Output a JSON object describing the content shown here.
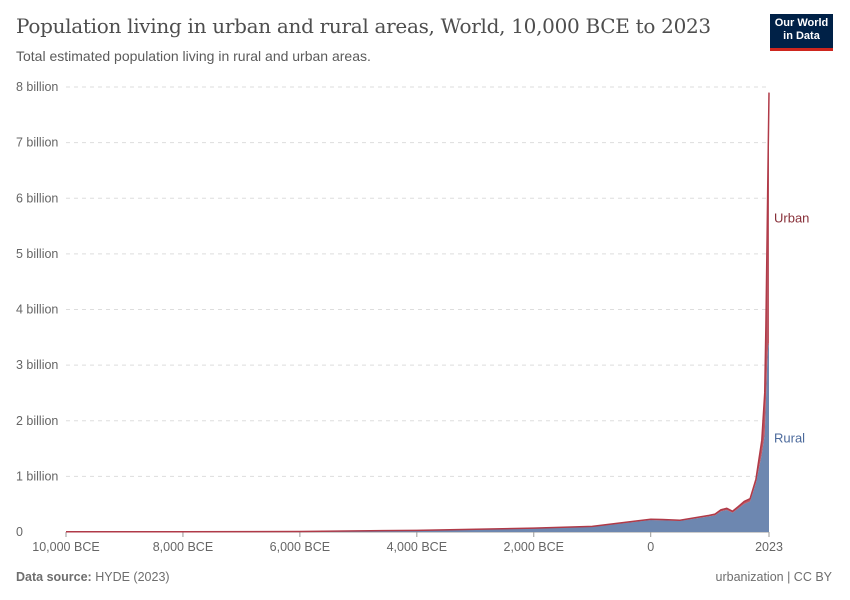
{
  "header": {
    "title": "Population living in urban and rural areas, World, 10,000 BCE to 2023",
    "subtitle": "Total estimated population living in rural and urban areas.",
    "logo": "Our World in Data"
  },
  "footer": {
    "source_label": "Data source:",
    "source": "HYDE (2023)",
    "license": "urbanization | CC BY"
  },
  "chart_data": {
    "type": "area",
    "stacked": true,
    "title": "Population living in urban and rural areas, World, 10,000 BCE to 2023",
    "xlim": [
      -10000,
      2023
    ],
    "ylim": [
      0,
      8000000000
    ],
    "grid": true,
    "legend": "right (inline labels)",
    "x_ticks": [
      {
        "value": -10000,
        "label": "10,000 BCE"
      },
      {
        "value": -8000,
        "label": "8,000 BCE"
      },
      {
        "value": -6000,
        "label": "6,000 BCE"
      },
      {
        "value": -4000,
        "label": "4,000 BCE"
      },
      {
        "value": -2000,
        "label": "2,000 BCE"
      },
      {
        "value": 0,
        "label": "0"
      },
      {
        "value": 2023,
        "label": "2023"
      }
    ],
    "y_ticks": [
      {
        "value": 0,
        "label": "0"
      },
      {
        "value": 1000000000,
        "label": "1 billion"
      },
      {
        "value": 2000000000,
        "label": "2 billion"
      },
      {
        "value": 3000000000,
        "label": "3 billion"
      },
      {
        "value": 4000000000,
        "label": "4 billion"
      },
      {
        "value": 5000000000,
        "label": "5 billion"
      },
      {
        "value": 6000000000,
        "label": "6 billion"
      },
      {
        "value": 7000000000,
        "label": "7 billion"
      },
      {
        "value": 8000000000,
        "label": "8 billion"
      }
    ],
    "x": [
      -10000,
      -8000,
      -6000,
      -4000,
      -2000,
      -1000,
      0,
      200,
      500,
      1000,
      1100,
      1200,
      1300,
      1400,
      1500,
      1600,
      1700,
      1800,
      1900,
      1950,
      1970,
      1990,
      2000,
      2010,
      2023
    ],
    "series": [
      {
        "name": "Rural",
        "color": "#6d87b0",
        "values": [
          4400000,
          5000000,
          9000000,
          28000000,
          65000000,
          95000000,
          215000000,
          210000000,
          200000000,
          280000000,
          300000000,
          370000000,
          395000000,
          345000000,
          425000000,
          505000000,
          550000000,
          880000000,
          1400000000,
          1750000000,
          2350000000,
          2970000000,
          3200000000,
          3350000000,
          3400000000
        ]
      },
      {
        "name": "Urban",
        "color": "#b03a48",
        "values": [
          100000,
          200000,
          500000,
          2000000,
          5000000,
          7000000,
          15000000,
          15000000,
          12000000,
          20000000,
          22000000,
          28000000,
          32000000,
          28000000,
          35000000,
          45000000,
          50000000,
          70000000,
          250000000,
          750000000,
          1350000000,
          2300000000,
          2900000000,
          3550000000,
          4500000000
        ]
      }
    ]
  }
}
